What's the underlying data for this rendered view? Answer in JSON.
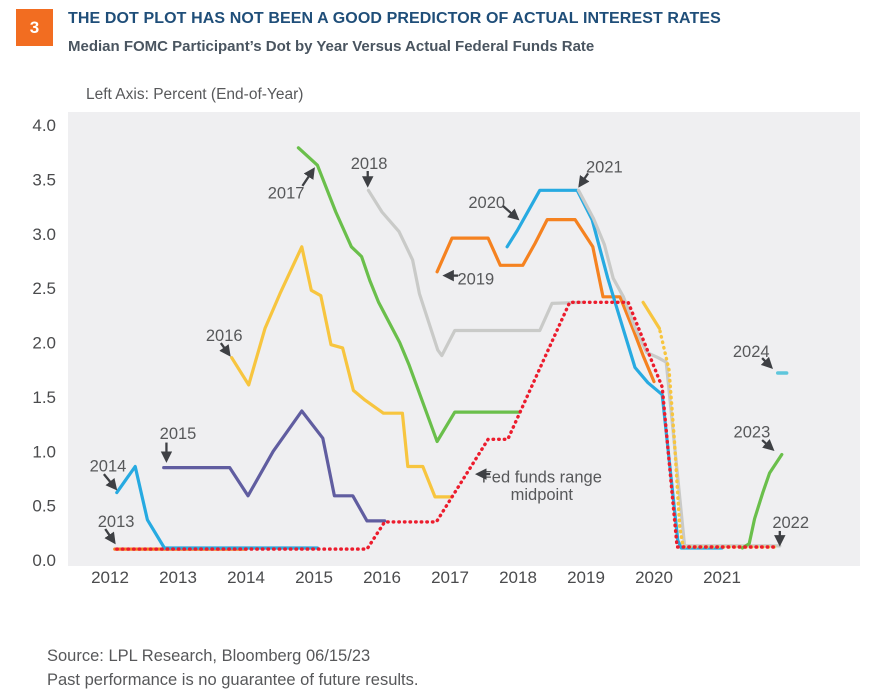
{
  "badge": {
    "number": "3"
  },
  "header": {
    "title": "THE DOT PLOT HAS NOT BEEN A GOOD PREDICTOR OF ACTUAL INTEREST RATES",
    "subtitle": "Median FOMC Participant’s Dot by Year Versus Actual Federal Funds Rate",
    "axis_note": "Left Axis: Percent (End-of-Year)"
  },
  "footer": {
    "source": "Source: LPL Research, Bloomberg  06/15/23",
    "disclaimer": "Past performance is no guarantee of future results."
  },
  "chart_data": {
    "type": "line",
    "title": "Median FOMC Participant’s Dot by Year Versus Actual Federal Funds Rate",
    "xlabel": "",
    "ylabel": "Percent (End-of-Year)",
    "xlim": [
      2011.38,
      2023.03
    ],
    "ylim": [
      0,
      4.0
    ],
    "grid": false,
    "legend": "none",
    "background": "#efeff1",
    "x_axis": {
      "ticks": [
        2012,
        2013,
        2014,
        2015,
        2016,
        2017,
        2018,
        2019,
        2020,
        2021
      ]
    },
    "y_axis": {
      "ticks": [
        0.0,
        0.5,
        1.0,
        1.5,
        2.0,
        2.5,
        3.0,
        3.5,
        4.0
      ]
    },
    "series": [
      {
        "name": "2013-dot",
        "color": "#f58220",
        "dash": "solid",
        "points": [
          [
            2012.07,
            0.1
          ],
          [
            2014.0,
            0.1
          ]
        ]
      },
      {
        "name": "2014-dot",
        "color": "#27aae1",
        "dash": "solid",
        "points": [
          [
            2012.1,
            0.62
          ],
          [
            2012.37,
            0.86
          ],
          [
            2012.55,
            0.37
          ],
          [
            2012.8,
            0.11
          ],
          [
            2015.05,
            0.11
          ]
        ]
      },
      {
        "name": "2015-dot",
        "color": "#605da0",
        "dash": "solid",
        "points": [
          [
            2012.79,
            0.85
          ],
          [
            2013.76,
            0.85
          ],
          [
            2014.03,
            0.59
          ],
          [
            2014.4,
            1.0
          ],
          [
            2014.82,
            1.37
          ],
          [
            2015.13,
            1.12
          ],
          [
            2015.3,
            0.59
          ],
          [
            2015.57,
            0.59
          ],
          [
            2015.78,
            0.36
          ],
          [
            2016.04,
            0.36
          ]
        ]
      },
      {
        "name": "2016-dot",
        "color": "#f7c53f",
        "dash": "solid",
        "points": [
          [
            2013.79,
            1.86
          ],
          [
            2014.04,
            1.61
          ],
          [
            2014.28,
            2.13
          ],
          [
            2014.5,
            2.45
          ],
          [
            2014.82,
            2.88
          ],
          [
            2014.96,
            2.48
          ],
          [
            2015.1,
            2.43
          ],
          [
            2015.25,
            1.98
          ],
          [
            2015.42,
            1.95
          ],
          [
            2015.58,
            1.56
          ],
          [
            2015.75,
            1.47
          ],
          [
            2016.02,
            1.35
          ],
          [
            2016.3,
            1.35
          ],
          [
            2016.38,
            0.86
          ],
          [
            2016.6,
            0.86
          ],
          [
            2016.78,
            0.58
          ],
          [
            2017.03,
            0.58
          ]
        ]
      },
      {
        "name": "2017-dot",
        "color": "#6abf4b",
        "dash": "solid",
        "points": [
          [
            2014.77,
            3.79
          ],
          [
            2015.05,
            3.63
          ],
          [
            2015.32,
            3.2
          ],
          [
            2015.55,
            2.88
          ],
          [
            2015.7,
            2.79
          ],
          [
            2015.82,
            2.57
          ],
          [
            2015.95,
            2.37
          ],
          [
            2016.26,
            2.0
          ],
          [
            2016.4,
            1.79
          ],
          [
            2016.81,
            1.09
          ],
          [
            2017.07,
            1.36
          ],
          [
            2018.03,
            1.36
          ]
        ]
      },
      {
        "name": "2018-dot",
        "color": "#c9cac8",
        "dash": "solid",
        "points": [
          [
            2015.8,
            3.4
          ],
          [
            2016.0,
            3.2
          ],
          [
            2016.25,
            3.02
          ],
          [
            2016.45,
            2.76
          ],
          [
            2016.55,
            2.45
          ],
          [
            2016.82,
            1.93
          ],
          [
            2016.88,
            1.88
          ],
          [
            2017.07,
            2.11
          ],
          [
            2018.32,
            2.11
          ],
          [
            2018.5,
            2.36
          ],
          [
            2018.97,
            2.37
          ]
        ]
      },
      {
        "name": "2019-dot",
        "color": "#f58220",
        "dash": "solid",
        "points": [
          [
            2016.81,
            2.65
          ],
          [
            2017.03,
            2.96
          ],
          [
            2017.56,
            2.96
          ],
          [
            2017.74,
            2.71
          ],
          [
            2018.07,
            2.71
          ],
          [
            2018.25,
            2.91
          ],
          [
            2018.43,
            3.13
          ],
          [
            2018.84,
            3.13
          ],
          [
            2019.1,
            2.88
          ],
          [
            2019.25,
            2.42
          ],
          [
            2019.5,
            2.42
          ],
          [
            2019.7,
            2.11
          ],
          [
            2019.84,
            1.88
          ],
          [
            2020.0,
            1.64
          ]
        ]
      },
      {
        "name": "2020-dot",
        "color": "#27aae1",
        "dash": "solid",
        "points": [
          [
            2017.84,
            2.88
          ],
          [
            2017.99,
            3.03
          ],
          [
            2018.32,
            3.4
          ],
          [
            2018.87,
            3.4
          ],
          [
            2019.09,
            3.13
          ],
          [
            2019.32,
            2.59
          ],
          [
            2019.54,
            2.14
          ],
          [
            2019.72,
            1.77
          ],
          [
            2019.91,
            1.63
          ],
          [
            2020.12,
            1.52
          ],
          [
            2020.35,
            0.18
          ],
          [
            2020.4,
            0.11
          ],
          [
            2021.0,
            0.11
          ]
        ]
      },
      {
        "name": "2021-dot",
        "color": "#c9cac8",
        "dash": "solid",
        "points": [
          [
            2018.89,
            3.4
          ],
          [
            2019.11,
            3.14
          ],
          [
            2019.27,
            2.9
          ],
          [
            2019.4,
            2.59
          ],
          [
            2019.55,
            2.42
          ],
          [
            2019.72,
            2.14
          ],
          [
            2019.89,
            1.91
          ],
          [
            2020.06,
            1.86
          ],
          [
            2020.18,
            1.82
          ],
          [
            2020.45,
            0.13
          ],
          [
            2021.85,
            0.13
          ]
        ]
      },
      {
        "name": "2022-dot-solid",
        "color": "#f7c53f",
        "dash": "solid",
        "points": [
          [
            2019.84,
            2.37
          ],
          [
            2020.08,
            2.13
          ]
        ]
      },
      {
        "name": "2022-dot-projected",
        "color": "#f7c53f",
        "dash": "dot",
        "dash_offset": 2.8,
        "points": [
          [
            2020.08,
            2.13
          ],
          [
            2020.22,
            1.75
          ],
          [
            2020.3,
            1.1
          ],
          [
            2020.38,
            0.3
          ],
          [
            2020.43,
            0.12
          ],
          [
            2021.82,
            0.12
          ]
        ]
      },
      {
        "name": "2023-dot",
        "color": "#6abf4b",
        "dash": "solid",
        "points": [
          [
            2021.3,
            0.11
          ],
          [
            2021.4,
            0.15
          ],
          [
            2021.48,
            0.38
          ],
          [
            2021.6,
            0.62
          ],
          [
            2021.7,
            0.8
          ],
          [
            2021.88,
            0.97
          ]
        ]
      },
      {
        "name": "2024-dot",
        "color": "#5ec6dc",
        "dash": "solid",
        "width": 3.6,
        "points": [
          [
            2021.82,
            1.72
          ],
          [
            2021.95,
            1.72
          ]
        ]
      },
      {
        "name": "fed-funds-midpoint",
        "color": "#ec1c2d",
        "dash": "dot",
        "points": [
          [
            2012.1,
            0.1
          ],
          [
            2015.78,
            0.1
          ],
          [
            2016.04,
            0.35
          ],
          [
            2016.8,
            0.35
          ],
          [
            2017.56,
            1.11
          ],
          [
            2017.85,
            1.11
          ],
          [
            2018.76,
            2.37
          ],
          [
            2019.62,
            2.37
          ],
          [
            2020.12,
            1.59
          ],
          [
            2020.34,
            0.12
          ],
          [
            2021.82,
            0.12
          ]
        ]
      }
    ],
    "annotations": [
      {
        "lines": [
          "2013"
        ],
        "tx": 2012.09,
        "ty": 0.36,
        "arrow": [
          2011.93,
          0.285,
          2012.06,
          0.166
        ]
      },
      {
        "lines": [
          "2014"
        ],
        "tx": 2011.97,
        "ty": 0.87,
        "arrow": [
          2011.91,
          0.79,
          2012.08,
          0.66
        ]
      },
      {
        "lines": [
          "2015"
        ],
        "tx": 2013.0,
        "ty": 1.17,
        "arrow": [
          2012.83,
          1.08,
          2012.83,
          0.92
        ]
      },
      {
        "lines": [
          "2016"
        ],
        "tx": 2013.68,
        "ty": 2.07,
        "arrow": [
          2013.63,
          1.995,
          2013.75,
          1.89
        ]
      },
      {
        "lines": [
          "2017"
        ],
        "tx": 2014.59,
        "ty": 3.38,
        "arrow": [
          2014.83,
          3.44,
          2014.99,
          3.59
        ]
      },
      {
        "lines": [
          "2018"
        ],
        "tx": 2015.81,
        "ty": 3.65,
        "arrow": [
          2015.79,
          3.577,
          2015.79,
          3.45
        ]
      },
      {
        "lines": [
          "2019"
        ],
        "tx": 2017.38,
        "ty": 2.59,
        "arrow": [
          2017.12,
          2.615,
          2016.93,
          2.615
        ]
      },
      {
        "lines": [
          "2020"
        ],
        "tx": 2017.54,
        "ty": 3.29,
        "arrow": [
          2017.78,
          3.255,
          2017.99,
          3.14
        ]
      },
      {
        "lines": [
          "2021"
        ],
        "tx": 2019.27,
        "ty": 3.62,
        "arrow": [
          2019.03,
          3.555,
          2018.91,
          3.445
        ]
      },
      {
        "lines": [
          "2022"
        ],
        "tx": 2022.01,
        "ty": 0.35,
        "arrow": [
          2021.85,
          0.267,
          2021.85,
          0.15
        ]
      },
      {
        "lines": [
          "2023"
        ],
        "tx": 2021.44,
        "ty": 1.18,
        "arrow": [
          2021.59,
          1.103,
          2021.74,
          1.02
        ]
      },
      {
        "lines": [
          "2024"
        ],
        "tx": 2021.43,
        "ty": 1.92,
        "arrow": [
          2021.59,
          1.857,
          2021.72,
          1.775
        ]
      },
      {
        "lines": [
          "Fed funds range",
          "midpoint"
        ],
        "tx": 2018.35,
        "ty": 0.77,
        "arrow": [
          2017.59,
          0.79,
          2017.41,
          0.79
        ]
      }
    ]
  }
}
